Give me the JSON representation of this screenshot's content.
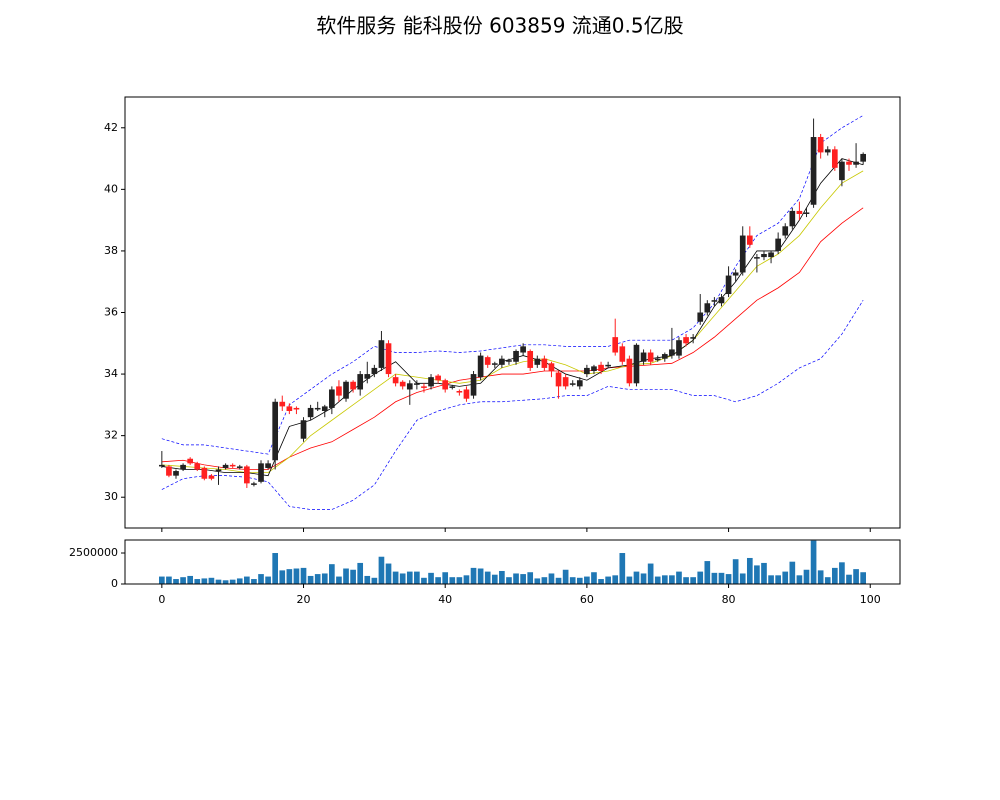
{
  "chart_data": [
    {
      "type": "candlestick",
      "title": "软件服务 能科股份 603859 流通0.5亿股",
      "x": [
        0,
        1,
        2,
        3,
        4,
        5,
        6,
        7,
        8,
        9,
        10,
        11,
        12,
        13,
        14,
        15,
        16,
        17,
        18,
        19,
        20,
        21,
        22,
        23,
        24,
        25,
        26,
        27,
        28,
        29,
        30,
        31,
        32,
        33,
        34,
        35,
        36,
        37,
        38,
        39,
        40,
        41,
        42,
        43,
        44,
        45,
        46,
        47,
        48,
        49,
        50,
        51,
        52,
        53,
        54,
        55,
        56,
        57,
        58,
        59,
        60,
        61,
        62,
        63,
        64,
        65,
        66,
        67,
        68,
        69,
        70,
        71,
        72,
        73,
        74,
        75,
        76,
        77,
        78,
        79,
        80,
        81,
        82,
        83,
        84,
        85,
        86,
        87,
        88,
        89,
        90,
        91,
        92,
        93,
        94,
        95,
        96,
        97,
        98,
        99
      ],
      "open": [
        31.0,
        31.0,
        30.7,
        30.9,
        31.25,
        31.1,
        30.95,
        30.7,
        30.85,
        30.95,
        31.05,
        30.95,
        31.0,
        30.4,
        30.5,
        30.95,
        31.2,
        33.1,
        32.95,
        32.9,
        31.9,
        32.6,
        32.85,
        32.8,
        32.9,
        33.6,
        33.2,
        33.75,
        33.5,
        33.85,
        34.0,
        34.2,
        35.0,
        33.9,
        33.75,
        33.5,
        33.65,
        33.6,
        33.6,
        33.95,
        33.8,
        33.55,
        33.45,
        33.5,
        33.3,
        33.9,
        34.55,
        34.3,
        34.3,
        34.4,
        34.4,
        34.7,
        34.75,
        34.3,
        34.5,
        34.35,
        34.05,
        33.9,
        33.65,
        33.6,
        34.0,
        34.1,
        34.3,
        34.25,
        35.2,
        34.9,
        34.5,
        33.7,
        34.4,
        34.7,
        34.45,
        34.5,
        34.6,
        34.6,
        35.2,
        35.15,
        35.7,
        36.0,
        36.35,
        36.3,
        36.6,
        37.2,
        37.3,
        38.5,
        37.75,
        37.8,
        37.8,
        38.0,
        38.5,
        38.8,
        39.3,
        39.2,
        39.5,
        41.7,
        41.2,
        41.3,
        40.3,
        40.9,
        40.8,
        40.9
      ],
      "close": [
        31.05,
        30.7,
        30.85,
        31.05,
        31.1,
        30.9,
        30.6,
        30.6,
        30.9,
        31.05,
        31.0,
        31.0,
        30.45,
        30.45,
        31.1,
        31.1,
        33.1,
        32.95,
        32.8,
        32.85,
        32.5,
        32.9,
        32.9,
        32.95,
        33.5,
        33.3,
        33.75,
        33.5,
        34.0,
        34.0,
        34.2,
        35.1,
        34.0,
        33.7,
        33.6,
        33.7,
        33.7,
        33.55,
        33.9,
        33.8,
        33.5,
        33.6,
        33.4,
        33.2,
        34.0,
        34.6,
        34.3,
        34.35,
        34.5,
        34.45,
        34.75,
        34.9,
        34.2,
        34.5,
        34.2,
        34.1,
        33.6,
        33.6,
        33.7,
        33.8,
        34.2,
        34.25,
        34.1,
        34.3,
        34.7,
        34.4,
        33.7,
        34.95,
        34.7,
        34.4,
        34.5,
        34.65,
        34.8,
        35.1,
        35.0,
        35.2,
        36.0,
        36.3,
        36.4,
        36.5,
        37.2,
        37.3,
        38.5,
        38.2,
        37.8,
        37.9,
        37.95,
        38.4,
        38.8,
        39.3,
        39.2,
        39.25,
        41.7,
        41.2,
        41.3,
        40.7,
        40.9,
        40.8,
        40.9,
        41.15
      ],
      "high": [
        31.5,
        31.05,
        30.9,
        31.1,
        31.3,
        31.15,
        31.0,
        30.75,
        31.0,
        31.1,
        31.1,
        31.05,
        31.05,
        30.5,
        31.2,
        31.2,
        33.2,
        33.3,
        33.05,
        32.95,
        32.6,
        33.0,
        33.1,
        33.0,
        33.6,
        33.8,
        33.8,
        33.8,
        34.1,
        34.4,
        34.3,
        35.4,
        35.1,
        34.0,
        33.8,
        33.8,
        33.8,
        33.7,
        34.0,
        34.0,
        33.85,
        33.65,
        33.5,
        33.6,
        34.1,
        34.7,
        34.6,
        34.4,
        34.6,
        34.5,
        34.8,
        35.0,
        34.8,
        34.6,
        34.6,
        34.4,
        34.1,
        34.0,
        33.8,
        33.9,
        34.3,
        34.3,
        34.4,
        34.4,
        35.8,
        35.0,
        34.6,
        35.0,
        34.8,
        34.8,
        34.6,
        34.7,
        35.5,
        35.2,
        35.3,
        35.3,
        36.6,
        36.4,
        36.5,
        36.6,
        37.5,
        37.4,
        38.8,
        38.8,
        37.9,
        38.0,
        38.0,
        38.6,
        38.9,
        39.4,
        39.6,
        39.4,
        42.3,
        41.8,
        41.4,
        41.4,
        41.0,
        41.0,
        41.5,
        41.2
      ],
      "low": [
        30.95,
        30.65,
        30.6,
        30.85,
        31.05,
        30.85,
        30.55,
        30.55,
        30.4,
        30.9,
        30.95,
        30.9,
        30.3,
        30.35,
        30.45,
        30.9,
        30.9,
        32.8,
        32.7,
        32.7,
        31.8,
        32.5,
        32.8,
        32.6,
        32.7,
        33.1,
        33.1,
        33.4,
        33.3,
        33.7,
        33.9,
        34.1,
        33.9,
        33.6,
        33.5,
        33.0,
        33.5,
        33.4,
        33.5,
        33.7,
        33.4,
        33.5,
        33.3,
        33.1,
        33.2,
        33.8,
        34.2,
        34.2,
        34.2,
        34.3,
        34.3,
        34.6,
        34.1,
        34.2,
        34.1,
        33.9,
        33.2,
        33.5,
        33.6,
        33.5,
        33.9,
        34.0,
        34.0,
        34.2,
        34.6,
        34.3,
        33.6,
        33.6,
        34.3,
        34.3,
        34.4,
        34.4,
        34.5,
        34.5,
        34.9,
        35.0,
        35.6,
        35.9,
        36.2,
        36.2,
        36.5,
        37.0,
        37.2,
        38.1,
        37.3,
        37.7,
        37.6,
        37.9,
        38.4,
        38.7,
        39.0,
        39.1,
        39.4,
        41.0,
        41.1,
        40.6,
        40.1,
        40.6,
        40.7,
        40.8
      ],
      "up_color": "#222222",
      "down_color": "#ff2020",
      "series": [
        {
          "color": "#0000ff",
          "dashed": true,
          "x": [
            0,
            3,
            6,
            9,
            12,
            15,
            18,
            21,
            24,
            27,
            30,
            33,
            36,
            39,
            42,
            45,
            48,
            51,
            54,
            57,
            60,
            63,
            66,
            69,
            72,
            75,
            78,
            81,
            84,
            87,
            90,
            93,
            96,
            99
          ],
          "values": [
            31.9,
            31.7,
            31.7,
            31.6,
            31.5,
            31.4,
            33.0,
            33.5,
            34.0,
            34.4,
            34.9,
            34.7,
            34.7,
            34.75,
            34.7,
            34.75,
            34.85,
            34.95,
            34.95,
            34.9,
            34.9,
            34.9,
            35.1,
            35.1,
            35.1,
            35.5,
            36.3,
            37.5,
            38.5,
            38.9,
            39.7,
            41.5,
            42.0,
            42.4
          ]
        },
        {
          "color": "#0000ff",
          "dashed": true,
          "x": [
            0,
            3,
            6,
            9,
            12,
            15,
            18,
            21,
            24,
            27,
            30,
            33,
            36,
            39,
            42,
            45,
            48,
            51,
            54,
            57,
            60,
            63,
            66,
            69,
            72,
            75,
            78,
            81,
            84,
            87,
            90,
            93,
            96,
            99
          ],
          "values": [
            30.25,
            30.6,
            30.7,
            30.7,
            30.65,
            30.5,
            29.7,
            29.6,
            29.6,
            29.9,
            30.4,
            31.5,
            32.5,
            32.8,
            33.0,
            33.1,
            33.1,
            33.15,
            33.2,
            33.3,
            33.3,
            33.6,
            33.5,
            33.5,
            33.5,
            33.3,
            33.3,
            33.1,
            33.3,
            33.7,
            34.2,
            34.5,
            35.3,
            36.4
          ]
        },
        {
          "color": "#ff0000",
          "dashed": false,
          "x": [
            0,
            3,
            6,
            9,
            12,
            15,
            18,
            21,
            24,
            27,
            30,
            33,
            36,
            39,
            42,
            45,
            48,
            51,
            54,
            57,
            60,
            63,
            66,
            69,
            72,
            75,
            78,
            81,
            84,
            87,
            90,
            93,
            96,
            99
          ],
          "values": [
            31.15,
            31.2,
            31.05,
            30.95,
            30.9,
            30.9,
            31.3,
            31.6,
            31.8,
            32.2,
            32.6,
            33.1,
            33.4,
            33.6,
            33.8,
            33.9,
            34.0,
            34.0,
            34.1,
            34.1,
            34.1,
            34.2,
            34.25,
            34.3,
            34.35,
            34.7,
            35.2,
            35.8,
            36.4,
            36.8,
            37.3,
            38.3,
            38.9,
            39.4
          ]
        },
        {
          "color": "#c8c800",
          "dashed": false,
          "x": [
            0,
            3,
            6,
            9,
            12,
            15,
            18,
            21,
            24,
            27,
            30,
            33,
            36,
            39,
            42,
            45,
            48,
            51,
            54,
            57,
            60,
            63,
            66,
            69,
            72,
            75,
            78,
            81,
            84,
            87,
            90,
            93,
            96,
            99
          ],
          "values": [
            31.05,
            31.0,
            30.95,
            30.9,
            30.8,
            30.8,
            31.3,
            32.0,
            32.5,
            33.0,
            33.5,
            34.0,
            33.9,
            33.8,
            33.7,
            33.8,
            34.2,
            34.4,
            34.5,
            34.3,
            34.0,
            34.1,
            34.3,
            34.35,
            34.6,
            35.1,
            35.9,
            36.7,
            37.5,
            37.9,
            38.5,
            39.4,
            40.2,
            40.6
          ]
        },
        {
          "color": "#000000",
          "dashed": false,
          "x": [
            0,
            3,
            6,
            9,
            12,
            15,
            18,
            21,
            24,
            27,
            30,
            33,
            36,
            39,
            42,
            45,
            48,
            51,
            54,
            57,
            60,
            63,
            66,
            69,
            72,
            75,
            78,
            81,
            84,
            87,
            90,
            93,
            96,
            99
          ],
          "values": [
            31.0,
            30.9,
            30.9,
            30.8,
            30.8,
            30.7,
            32.3,
            32.5,
            32.9,
            33.5,
            34.0,
            34.4,
            33.7,
            33.7,
            33.6,
            33.7,
            34.4,
            34.6,
            34.4,
            34.0,
            33.8,
            34.2,
            34.3,
            34.5,
            34.6,
            35.1,
            36.2,
            37.0,
            38.0,
            38.0,
            39.0,
            40.2,
            41.0,
            40.8
          ]
        }
      ],
      "xlim": [
        -5.2,
        104.2
      ],
      "xticks": [
        0,
        20,
        40,
        60,
        80,
        100
      ],
      "ylim": [
        29,
        43
      ],
      "yticks": [
        30,
        32,
        34,
        36,
        38,
        40,
        42
      ]
    },
    {
      "type": "bar",
      "color": "#1f77b4",
      "x": [
        0,
        1,
        2,
        3,
        4,
        5,
        6,
        7,
        8,
        9,
        10,
        11,
        12,
        13,
        14,
        15,
        16,
        17,
        18,
        19,
        20,
        21,
        22,
        23,
        24,
        25,
        26,
        27,
        28,
        29,
        30,
        31,
        32,
        33,
        34,
        35,
        36,
        37,
        38,
        39,
        40,
        41,
        42,
        43,
        44,
        45,
        46,
        47,
        48,
        49,
        50,
        51,
        52,
        53,
        54,
        55,
        56,
        57,
        58,
        59,
        60,
        61,
        62,
        63,
        64,
        65,
        66,
        67,
        68,
        69,
        70,
        71,
        72,
        73,
        74,
        75,
        76,
        77,
        78,
        79,
        80,
        81,
        82,
        83,
        84,
        85,
        86,
        87,
        88,
        89,
        90,
        91,
        92,
        93,
        94,
        95,
        96,
        97,
        98,
        99
      ],
      "values": [
        600000,
        600000,
        400000,
        550000,
        650000,
        400000,
        450000,
        500000,
        350000,
        300000,
        350000,
        450000,
        600000,
        400000,
        800000,
        600000,
        2500000,
        1100000,
        1200000,
        1250000,
        1300000,
        650000,
        800000,
        850000,
        1600000,
        600000,
        1250000,
        1150000,
        1700000,
        650000,
        500000,
        2200000,
        1650000,
        1000000,
        850000,
        1000000,
        1000000,
        500000,
        900000,
        550000,
        950000,
        550000,
        550000,
        700000,
        1300000,
        1250000,
        1000000,
        750000,
        1050000,
        550000,
        850000,
        800000,
        950000,
        450000,
        550000,
        850000,
        500000,
        1150000,
        550000,
        500000,
        600000,
        950000,
        400000,
        600000,
        700000,
        2500000,
        600000,
        1000000,
        850000,
        1650000,
        600000,
        700000,
        700000,
        1000000,
        550000,
        550000,
        1000000,
        1850000,
        900000,
        900000,
        800000,
        2000000,
        850000,
        2100000,
        1500000,
        1700000,
        700000,
        700000,
        1000000,
        1800000,
        700000,
        1150000,
        3500000,
        1100000,
        550000,
        1300000,
        1750000,
        750000,
        1200000,
        950000
      ],
      "xlim": [
        -5.2,
        104.2
      ],
      "xticks": [
        0,
        20,
        40,
        60,
        80,
        100
      ],
      "ylim": [
        0,
        3550000
      ],
      "yticks": [
        0,
        2500000
      ]
    }
  ]
}
